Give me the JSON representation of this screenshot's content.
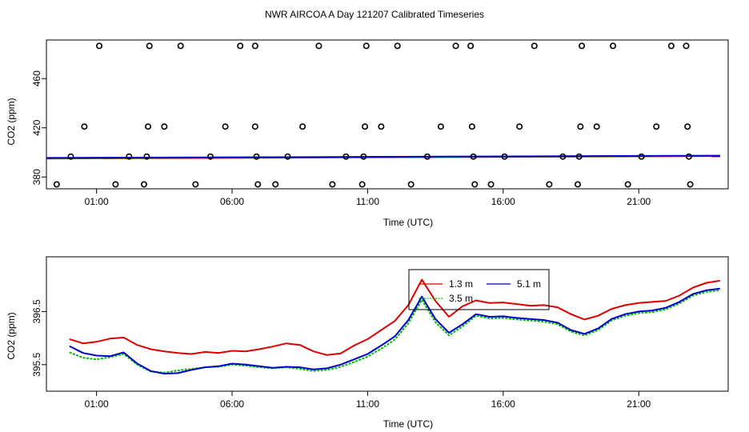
{
  "title": "NWR AIRCOA A  Day 121207  Calibrated Timeseries",
  "chart_data": [
    {
      "type": "scatter",
      "xlabel": "Time (UTC)",
      "ylabel": "CO2 (ppm)",
      "xlim": [
        -0.85,
        24.3
      ],
      "ylim": [
        370.4,
        491.4
      ],
      "xticks": [
        1,
        6,
        11,
        16,
        21
      ],
      "xtick_labels": [
        "01:00",
        "06:00",
        "11:00",
        "16:00",
        "21:00"
      ],
      "yticks": [
        380,
        420,
        460
      ],
      "ytick_labels": [
        "380",
        "420",
        "460"
      ],
      "grid": false,
      "legend": "none",
      "colors": {
        "points": "#000000",
        "line_13": "#dd0000",
        "line_35": "#00bb00",
        "line_51": "#0000cc"
      },
      "points": [
        [
          -0.47,
          374.0
        ],
        [
          0.05,
          396.6
        ],
        [
          0.55,
          421.0
        ],
        [
          1.1,
          486.6
        ],
        [
          1.7,
          374.0
        ],
        [
          2.2,
          396.6
        ],
        [
          2.75,
          374.0
        ],
        [
          2.85,
          396.6
        ],
        [
          2.9,
          421.0
        ],
        [
          2.95,
          486.6
        ],
        [
          3.5,
          421.0
        ],
        [
          4.1,
          486.6
        ],
        [
          4.65,
          374.0
        ],
        [
          5.2,
          396.6
        ],
        [
          5.75,
          421.0
        ],
        [
          6.3,
          486.6
        ],
        [
          6.85,
          486.6
        ],
        [
          6.85,
          421.0
        ],
        [
          6.9,
          396.6
        ],
        [
          6.95,
          374.0
        ],
        [
          7.6,
          374.0
        ],
        [
          8.05,
          396.6
        ],
        [
          8.6,
          421.0
        ],
        [
          9.2,
          486.6
        ],
        [
          9.7,
          374.0
        ],
        [
          10.2,
          396.6
        ],
        [
          10.8,
          374.0
        ],
        [
          10.85,
          396.6
        ],
        [
          10.9,
          421.0
        ],
        [
          10.95,
          486.6
        ],
        [
          11.5,
          421.0
        ],
        [
          12.1,
          486.6
        ],
        [
          12.6,
          374.0
        ],
        [
          13.2,
          396.6
        ],
        [
          13.7,
          421.0
        ],
        [
          14.25,
          486.6
        ],
        [
          14.8,
          486.6
        ],
        [
          14.85,
          421.0
        ],
        [
          14.9,
          396.6
        ],
        [
          14.95,
          374.0
        ],
        [
          15.55,
          374.0
        ],
        [
          16.05,
          396.6
        ],
        [
          16.6,
          421.0
        ],
        [
          17.15,
          486.6
        ],
        [
          17.7,
          374.0
        ],
        [
          18.2,
          396.6
        ],
        [
          18.75,
          374.0
        ],
        [
          18.8,
          396.6
        ],
        [
          18.85,
          421.0
        ],
        [
          18.9,
          486.6
        ],
        [
          19.45,
          421.0
        ],
        [
          20.05,
          486.6
        ],
        [
          20.6,
          374.0
        ],
        [
          21.1,
          396.6
        ],
        [
          21.65,
          421.0
        ],
        [
          22.2,
          486.6
        ],
        [
          22.75,
          486.6
        ],
        [
          22.8,
          421.0
        ],
        [
          22.85,
          396.6
        ],
        [
          22.9,
          374.0
        ]
      ],
      "series": [
        {
          "color": "#dd0000",
          "values": [
            [
              -0.9,
              395.0
            ],
            [
              24.0,
              397.0
            ]
          ]
        },
        {
          "color": "#00bb00",
          "values": [
            [
              -0.9,
              395.3
            ],
            [
              24.0,
              397.2
            ]
          ]
        },
        {
          "color": "#0000cc",
          "values": [
            [
              -0.9,
              395.5
            ],
            [
              24.0,
              397.3
            ]
          ]
        }
      ]
    },
    {
      "type": "line",
      "xlabel": "Time (UTC)",
      "ylabel": "CO2 (ppm)",
      "xlim": [
        -0.85,
        24.3
      ],
      "ylim": [
        395.0,
        397.53
      ],
      "xticks": [
        1,
        6,
        11,
        16,
        21
      ],
      "xtick_labels": [
        "01:00",
        "06:00",
        "11:00",
        "16:00",
        "21:00"
      ],
      "yticks": [
        395.5,
        396.5
      ],
      "ytick_labels": [
        "395.5",
        "396.5"
      ],
      "grid": false,
      "legend": "top-center",
      "series": [
        {
          "name": "1.3 m",
          "color": "#dd0000",
          "values": [
            [
              0.0,
              395.98
            ],
            [
              0.5,
              395.9
            ],
            [
              1.0,
              395.93
            ],
            [
              1.5,
              395.99
            ],
            [
              2.0,
              396.01
            ],
            [
              2.5,
              395.87
            ],
            [
              3.0,
              395.79
            ],
            [
              3.5,
              395.75
            ],
            [
              4.0,
              395.72
            ],
            [
              4.5,
              395.7
            ],
            [
              5.0,
              395.74
            ],
            [
              5.5,
              395.72
            ],
            [
              6.0,
              395.76
            ],
            [
              6.5,
              395.75
            ],
            [
              7.0,
              395.79
            ],
            [
              7.5,
              395.84
            ],
            [
              8.0,
              395.9
            ],
            [
              8.5,
              395.87
            ],
            [
              9.0,
              395.75
            ],
            [
              9.5,
              395.68
            ],
            [
              10.0,
              395.71
            ],
            [
              10.5,
              395.86
            ],
            [
              11.0,
              395.98
            ],
            [
              11.5,
              396.15
            ],
            [
              12.0,
              396.32
            ],
            [
              12.5,
              396.62
            ],
            [
              13.0,
              397.1
            ],
            [
              13.5,
              396.7
            ],
            [
              14.0,
              396.4
            ],
            [
              14.5,
              396.6
            ],
            [
              15.0,
              396.71
            ],
            [
              15.5,
              396.66
            ],
            [
              16.0,
              396.67
            ],
            [
              16.5,
              396.64
            ],
            [
              17.0,
              396.61
            ],
            [
              17.5,
              396.62
            ],
            [
              18.0,
              396.58
            ],
            [
              18.5,
              396.45
            ],
            [
              19.0,
              396.35
            ],
            [
              19.5,
              396.42
            ],
            [
              20.0,
              396.55
            ],
            [
              20.5,
              396.62
            ],
            [
              21.0,
              396.66
            ],
            [
              21.5,
              396.68
            ],
            [
              22.0,
              396.7
            ],
            [
              22.5,
              396.8
            ],
            [
              23.0,
              396.95
            ],
            [
              23.5,
              397.04
            ],
            [
              24.0,
              397.08
            ]
          ]
        },
        {
          "name": "3.5 m",
          "color": "#00bb00",
          "values": [
            [
              0.0,
              395.73
            ],
            [
              0.5,
              395.63
            ],
            [
              1.0,
              395.6
            ],
            [
              1.5,
              395.64
            ],
            [
              2.0,
              395.7
            ],
            [
              2.5,
              395.5
            ],
            [
              3.0,
              395.37
            ],
            [
              3.5,
              395.35
            ],
            [
              4.0,
              395.39
            ],
            [
              4.5,
              395.42
            ],
            [
              5.0,
              395.45
            ],
            [
              5.5,
              395.46
            ],
            [
              6.0,
              395.5
            ],
            [
              6.5,
              395.48
            ],
            [
              7.0,
              395.45
            ],
            [
              7.5,
              395.43
            ],
            [
              8.0,
              395.45
            ],
            [
              8.5,
              395.42
            ],
            [
              9.0,
              395.38
            ],
            [
              9.5,
              395.4
            ],
            [
              10.0,
              395.46
            ],
            [
              10.5,
              395.55
            ],
            [
              11.0,
              395.65
            ],
            [
              11.5,
              395.8
            ],
            [
              12.0,
              395.97
            ],
            [
              12.5,
              396.28
            ],
            [
              13.0,
              396.72
            ],
            [
              13.5,
              396.3
            ],
            [
              14.0,
              396.05
            ],
            [
              14.5,
              396.22
            ],
            [
              15.0,
              396.42
            ],
            [
              15.5,
              396.37
            ],
            [
              16.0,
              396.38
            ],
            [
              16.5,
              396.35
            ],
            [
              17.0,
              396.33
            ],
            [
              17.5,
              396.31
            ],
            [
              18.0,
              396.26
            ],
            [
              18.5,
              396.12
            ],
            [
              19.0,
              396.05
            ],
            [
              19.5,
              396.15
            ],
            [
              20.0,
              396.33
            ],
            [
              20.5,
              396.42
            ],
            [
              21.0,
              396.47
            ],
            [
              21.5,
              396.49
            ],
            [
              22.0,
              396.54
            ],
            [
              22.5,
              396.65
            ],
            [
              23.0,
              396.8
            ],
            [
              23.5,
              396.87
            ],
            [
              24.0,
              396.9
            ]
          ]
        },
        {
          "name": "5.1 m",
          "color": "#0000cc",
          "values": [
            [
              0.0,
              395.85
            ],
            [
              0.5,
              395.72
            ],
            [
              1.0,
              395.67
            ],
            [
              1.5,
              395.66
            ],
            [
              2.0,
              395.73
            ],
            [
              2.5,
              395.52
            ],
            [
              3.0,
              395.38
            ],
            [
              3.5,
              395.33
            ],
            [
              4.0,
              395.34
            ],
            [
              4.5,
              395.4
            ],
            [
              5.0,
              395.45
            ],
            [
              5.5,
              395.47
            ],
            [
              6.0,
              395.52
            ],
            [
              6.5,
              395.5
            ],
            [
              7.0,
              395.47
            ],
            [
              7.5,
              395.44
            ],
            [
              8.0,
              395.46
            ],
            [
              8.5,
              395.45
            ],
            [
              9.0,
              395.41
            ],
            [
              9.5,
              395.43
            ],
            [
              10.0,
              395.5
            ],
            [
              10.5,
              395.6
            ],
            [
              11.0,
              395.7
            ],
            [
              11.5,
              395.86
            ],
            [
              12.0,
              396.03
            ],
            [
              12.5,
              396.34
            ],
            [
              13.0,
              396.78
            ],
            [
              13.5,
              396.36
            ],
            [
              14.0,
              396.1
            ],
            [
              14.5,
              396.26
            ],
            [
              15.0,
              396.45
            ],
            [
              15.5,
              396.4
            ],
            [
              16.0,
              396.41
            ],
            [
              16.5,
              396.38
            ],
            [
              17.0,
              396.36
            ],
            [
              17.5,
              396.34
            ],
            [
              18.0,
              396.29
            ],
            [
              18.5,
              396.15
            ],
            [
              19.0,
              396.08
            ],
            [
              19.5,
              396.18
            ],
            [
              20.0,
              396.36
            ],
            [
              20.5,
              396.45
            ],
            [
              21.0,
              396.5
            ],
            [
              21.5,
              396.52
            ],
            [
              22.0,
              396.57
            ],
            [
              22.5,
              396.68
            ],
            [
              23.0,
              396.83
            ],
            [
              23.5,
              396.9
            ],
            [
              24.0,
              396.93
            ]
          ]
        }
      ]
    }
  ]
}
